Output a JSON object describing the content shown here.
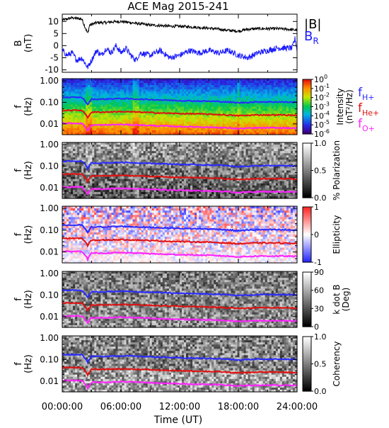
{
  "chart_data": {
    "title": "ACE Mag 2015-241",
    "xlabel": "Time (UT)",
    "x_ticks": [
      "00:00:00",
      "06:00:00",
      "12:00:00",
      "18:00:00",
      "24:00:00"
    ],
    "colors": {
      "B": "#000000",
      "BR": "#1a1aff",
      "fH": "#2a2aff",
      "fHe": "#e01010",
      "fO": "#ff20ff"
    },
    "panels": [
      {
        "type": "line",
        "ylabel": "B\n(nT)",
        "yticks": [
          "10",
          "5",
          "0",
          "-5",
          "-10"
        ],
        "ylim": [
          -11,
          13
        ],
        "series": [
          {
            "name": "|B|",
            "x_hours": [
              0,
              1,
              2,
              2.6,
              2.8,
              3.5,
              4.5,
              5,
              6,
              7,
              8,
              9,
              10,
              11,
              12,
              13,
              14,
              15,
              16,
              17,
              18,
              19,
              20,
              21,
              22,
              23,
              23.7,
              24
            ],
            "values": [
              10.5,
              11.5,
              11,
              5,
              8.5,
              9.5,
              9.5,
              9.8,
              10,
              9.5,
              9,
              8.5,
              8.3,
              8,
              8,
              7.8,
              7.5,
              7.2,
              6.8,
              6.3,
              6,
              6.8,
              7,
              7,
              7,
              6.8,
              6.5,
              6.5
            ]
          },
          {
            "name": "BR",
            "x_hours": [
              0,
              0.5,
              1,
              1.5,
              2,
              2.6,
              3,
              3.5,
              4,
              4.5,
              5,
              5.5,
              6,
              6.5,
              7,
              7.5,
              8,
              9,
              10,
              11,
              12,
              13,
              14,
              15,
              16,
              17,
              18,
              19,
              20,
              21,
              22,
              23,
              23.5,
              23.8,
              24
            ],
            "values": [
              -2,
              -4,
              -3,
              -6,
              -5,
              -9,
              -6,
              -2,
              -4,
              -1,
              -3,
              0,
              -3,
              -1,
              -4,
              -6,
              -3,
              -4,
              -2,
              -5,
              -4,
              -2,
              -3,
              -2,
              -3,
              -2,
              -4,
              -5,
              -3,
              -2,
              -1,
              -1,
              -1,
              3,
              -2
            ]
          }
        ],
        "legend": [
          "|B|",
          "B_R"
        ]
      },
      {
        "type": "heatmap",
        "ylabel": "f\n(Hz)",
        "yticks": [
          "1.00",
          "0.10",
          "0.01"
        ],
        "colorbar": {
          "label": "Intensity\n(nT²/Hz)",
          "ticks": [
            "10^0",
            "10^-1",
            "10^-2",
            "10^-3",
            "10^-4",
            "10^-5",
            "10^-6"
          ],
          "colormap": "rainbow"
        },
        "legend": [
          "f_H+",
          "f_He+",
          "f_O+"
        ]
      },
      {
        "type": "heatmap",
        "ylabel": "f\n(Hz)",
        "yticks": [
          "1.00",
          "0.10",
          "0.01"
        ],
        "colorbar": {
          "label": "% Polarization",
          "ticks": [
            "1.0",
            "0.5",
            "0.0"
          ],
          "colormap": "gray"
        }
      },
      {
        "type": "heatmap",
        "ylabel": "f\n(Hz)",
        "yticks": [
          "1.00",
          "0.10",
          "0.01"
        ],
        "colorbar": {
          "label": "Ellipticity",
          "ticks": [
            "1",
            "0",
            "-1"
          ],
          "colormap": "bluewhitered"
        }
      },
      {
        "type": "heatmap",
        "ylabel": "f\n(Hz)",
        "yticks": [
          "1.00",
          "0.10",
          "0.01"
        ],
        "colorbar": {
          "label": "k dot B\n(Deg)",
          "ticks": [
            "90",
            "60",
            "30",
            "0"
          ],
          "colormap": "gray"
        }
      },
      {
        "type": "heatmap",
        "ylabel": "f\n(Hz)",
        "yticks": [
          "1.00",
          "0.10",
          "0.01"
        ],
        "colorbar": {
          "label": "Coherency",
          "ticks": [
            "1.0",
            "0.5",
            "0.0"
          ],
          "colormap": "gray"
        }
      }
    ],
    "gyrofrequencies_hz": {
      "x_hours": [
        0,
        2,
        2.6,
        3,
        4,
        6,
        8,
        10,
        12,
        14,
        16,
        18,
        20,
        22,
        24
      ],
      "f_H": [
        0.17,
        0.17,
        0.075,
        0.14,
        0.14,
        0.15,
        0.14,
        0.13,
        0.12,
        0.115,
        0.11,
        0.095,
        0.105,
        0.105,
        0.1
      ],
      "f_He": [
        0.042,
        0.043,
        0.019,
        0.035,
        0.035,
        0.037,
        0.035,
        0.032,
        0.03,
        0.029,
        0.027,
        0.024,
        0.026,
        0.026,
        0.025
      ],
      "f_O": [
        0.0105,
        0.0107,
        0.0047,
        0.0088,
        0.0088,
        0.0093,
        0.0088,
        0.008,
        0.0075,
        0.0072,
        0.0068,
        0.006,
        0.0065,
        0.0065,
        0.0063
      ]
    }
  }
}
